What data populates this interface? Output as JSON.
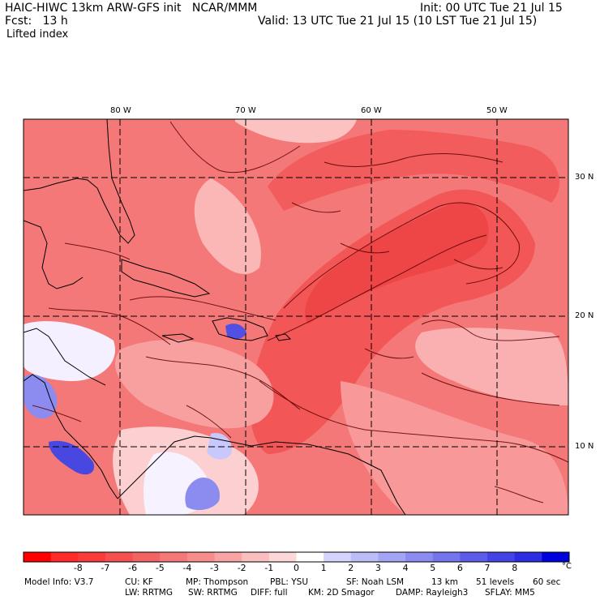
{
  "header": {
    "model": "HAIC-HIWC 13km ARW-GFS init",
    "org": "NCAR/MMM",
    "init": "Init: 00 UTC Tue 21 Jul 15",
    "fcst_label": "Fcst:",
    "fcst_value": "13 h",
    "valid": "Valid: 13 UTC Tue 21 Jul 15 (10 LST Tue 21 Jul 15)",
    "field": "Lifted index"
  },
  "map": {
    "lon_labels": [
      "80 W",
      "70 W",
      "60 W",
      "50 W"
    ],
    "lat_labels": [
      "30 N",
      "20 N",
      "10 N"
    ],
    "colors": {
      "deep_red": "#f03c3c",
      "red": "#f46a6a",
      "light_red": "#f99c9c",
      "pale_red": "#fcc8c8",
      "white": "#ffffff",
      "pale_blue": "#c8c8fc",
      "blue": "#7c7cf2",
      "deep_blue": "#3c3cdc"
    }
  },
  "legend": {
    "colors": [
      "#ff0000",
      "#ff2a2a",
      "#f83c3c",
      "#f45050",
      "#f26464",
      "#f47878",
      "#f68c8c",
      "#f8a4a4",
      "#fbbebe",
      "#fdd8d8",
      "#ffffff",
      "#d4d4fc",
      "#bcbcf8",
      "#a4a4f4",
      "#8c8cf0",
      "#7474ec",
      "#5c5ce8",
      "#4444e4",
      "#2c2ce0",
      "#0000dc"
    ],
    "ticks": [
      "-8",
      "-7",
      "-6",
      "-5",
      "-4",
      "-3",
      "-2",
      "-1",
      "0",
      "1",
      "2",
      "3",
      "4",
      "5",
      "6",
      "7",
      "8"
    ],
    "unit": "°C"
  },
  "footer": {
    "line1": {
      "info": "Model Info: V3.7",
      "cu": "CU: KF",
      "mp": "MP: Thompson",
      "pbl": "PBL: YSU",
      "sf": "SF: Noah LSM",
      "res": "13 km",
      "levels": "51 levels",
      "dt": "60 sec"
    },
    "line2": {
      "lw": "LW: RRTMG",
      "sw": "SW: RRTMG",
      "diff": "DIFF: full",
      "km": "KM: 2D Smagor",
      "damp": "DAMP: Rayleigh3",
      "sflay": "SFLAY: MM5"
    }
  }
}
